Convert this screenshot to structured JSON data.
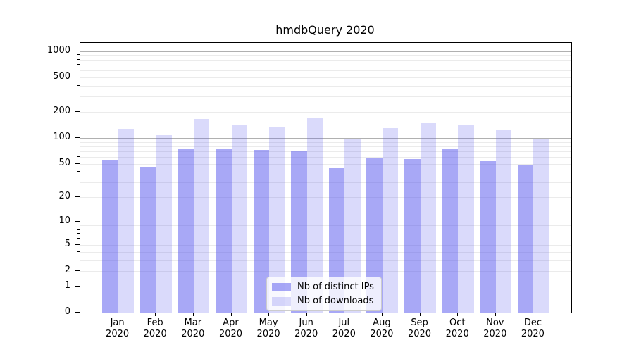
{
  "chart_data": {
    "type": "bar",
    "title": "hmdbQuery 2020",
    "categories": [
      "Jan",
      "Feb",
      "Mar",
      "Apr",
      "May",
      "Jun",
      "Jul",
      "Aug",
      "Sep",
      "Oct",
      "Nov",
      "Dec"
    ],
    "category_year": "2020",
    "series": [
      {
        "name": "Nb of distinct IPs",
        "color": "#5555ee82",
        "values": [
          56,
          46,
          74,
          74,
          73,
          71,
          44,
          59,
          57,
          76,
          54,
          49
        ]
      },
      {
        "name": "Nb of downloads",
        "color": "#5555ee38",
        "values": [
          127,
          108,
          165,
          142,
          136,
          172,
          98,
          130,
          148,
          143,
          122,
          98
        ]
      }
    ],
    "yscale": "log1p",
    "yticks": [
      0,
      1,
      2,
      5,
      10,
      20,
      50,
      100,
      200,
      500,
      1000
    ],
    "ylim": [
      0,
      1240
    ],
    "xlabel": "",
    "ylabel": "",
    "grid": true,
    "legend_position": "lower-center",
    "colors": {
      "major_grid": "#b0b0b0",
      "minor_grid": "#ebebeb",
      "spine": "#000000",
      "background": "#ffffff"
    }
  }
}
